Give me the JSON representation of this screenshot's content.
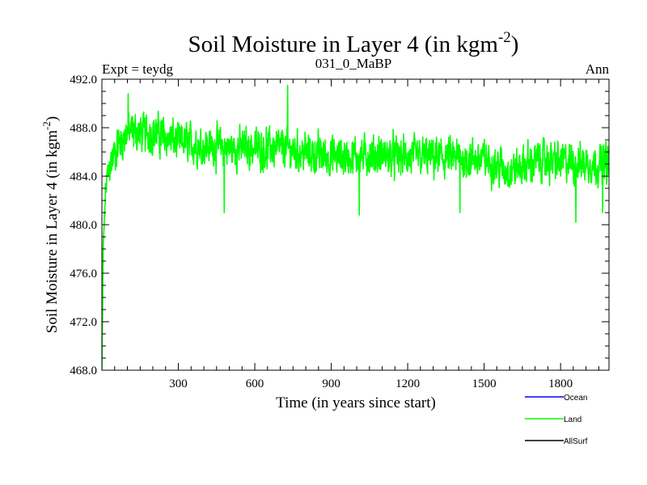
{
  "chart_data": {
    "type": "line",
    "title": "Soil Moisture in Layer 4 (in kgm",
    "title_superscript": "-2",
    "title_close": ")",
    "subtitle_left": "Expt = teydg",
    "subtitle_center": "031_0_MaBP",
    "subtitle_right": "Ann",
    "xlabel": "Time (in years since start)",
    "ylabel": "Soil Moisture in Layer 4 (in kgm",
    "ylabel_superscript": "-2",
    "ylabel_close": ")",
    "xlim": [
      0,
      1990
    ],
    "ylim": [
      468.0,
      492.0
    ],
    "xticks": [
      300,
      600,
      900,
      1200,
      1500,
      1800
    ],
    "xtick_labels": [
      "300",
      "600",
      "900",
      "1200",
      "1500",
      "1800"
    ],
    "yticks": [
      468.0,
      472.0,
      476.0,
      480.0,
      484.0,
      488.0,
      492.0
    ],
    "ytick_labels": [
      "468.0",
      "472.0",
      "476.0",
      "480.0",
      "484.0",
      "488.0",
      "492.0"
    ],
    "legend": [
      {
        "name": "Ocean",
        "color": "#0000ff"
      },
      {
        "name": "Land",
        "color": "#00ff00"
      },
      {
        "name": "AllSurf",
        "color": "#000000"
      }
    ],
    "series": [
      {
        "name": "Land",
        "color": "#00ff00",
        "n_points": 1990,
        "start_value": 468.0,
        "trend_knots": {
          "x": [
            0,
            5,
            15,
            30,
            60,
            100,
            200,
            300,
            500,
            700,
            900,
            1100,
            1300,
            1500,
            1600,
            1700,
            1800,
            1990
          ],
          "y": [
            468.0,
            478.0,
            483.0,
            484.8,
            486.5,
            487.6,
            487.6,
            486.8,
            486.3,
            486.3,
            485.6,
            485.7,
            485.5,
            485.4,
            484.4,
            485.3,
            485.2,
            485.0
          ]
        },
        "noise_amplitude": 1.5,
        "extremes": [
          {
            "x": 729,
            "y": 491.5
          },
          {
            "x": 103,
            "y": 490.8
          },
          {
            "x": 480,
            "y": 481.0
          },
          {
            "x": 1010,
            "y": 480.8
          },
          {
            "x": 1405,
            "y": 481.0
          },
          {
            "x": 1860,
            "y": 480.2
          },
          {
            "x": 1965,
            "y": 481.0
          }
        ]
      }
    ]
  }
}
